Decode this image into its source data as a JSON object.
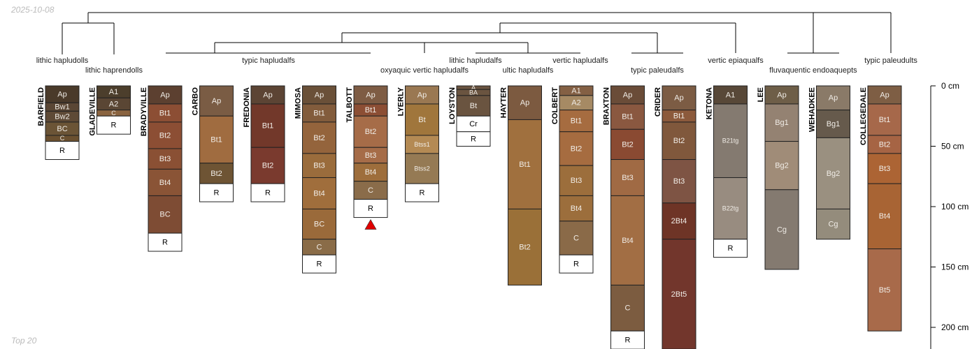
{
  "header": {
    "date": "2025-10-08"
  },
  "footer": {
    "caption": "Top 20"
  },
  "depth_axis": {
    "unit": "cm",
    "max_cm": 215,
    "ticks": [
      {
        "value": 0,
        "label": "0 cm"
      },
      {
        "value": 50,
        "label": "50 cm"
      },
      {
        "value": 100,
        "label": "100 cm"
      },
      {
        "value": 150,
        "label": "150 cm"
      },
      {
        "value": 200,
        "label": "200 cm"
      }
    ]
  },
  "taxa": [
    {
      "label": "lithic hapludolls",
      "row": 0
    },
    {
      "label": "lithic haprendolls",
      "row": 1
    },
    {
      "label": "typic hapludalfs",
      "row": 0
    },
    {
      "label": "oxyaquic vertic hapludalfs",
      "row": 1
    },
    {
      "label": "lithic hapludalfs",
      "row": 0
    },
    {
      "label": "ultic hapludalfs",
      "row": 1
    },
    {
      "label": "vertic hapludalfs",
      "row": 0
    },
    {
      "label": "typic paleudalfs",
      "row": 1
    },
    {
      "label": "vertic epiaqualfs",
      "row": 0
    },
    {
      "label": "fluvaquentic endoaquepts",
      "row": 1
    },
    {
      "label": "typic paleudults",
      "row": 0
    }
  ],
  "profiles": [
    {
      "name": "BARFIELD",
      "horizons": [
        {
          "name": "Ap",
          "top": 0,
          "bottom": 14,
          "color": "#4a3a2a"
        },
        {
          "name": "Bw1",
          "top": 14,
          "bottom": 21,
          "color": "#5a4634"
        },
        {
          "name": "Bw2",
          "top": 21,
          "bottom": 30,
          "color": "#5e4a36"
        },
        {
          "name": "BC",
          "top": 30,
          "bottom": 41,
          "color": "#6b5436"
        },
        {
          "name": "C",
          "top": 41,
          "bottom": 46,
          "color": "#6a5030"
        },
        {
          "name": "R",
          "top": 46,
          "bottom": 61,
          "color": "#ffffff"
        }
      ]
    },
    {
      "name": "GLADEVILLE",
      "horizons": [
        {
          "name": "A1",
          "top": 0,
          "bottom": 10,
          "color": "#4c3e2c"
        },
        {
          "name": "A2",
          "top": 10,
          "bottom": 20,
          "color": "#5a4634"
        },
        {
          "name": "C",
          "top": 20,
          "bottom": 25,
          "color": "#8a6440"
        },
        {
          "name": "R",
          "top": 25,
          "bottom": 40,
          "color": "#ffffff"
        }
      ]
    },
    {
      "name": "BRADYVILLE",
      "horizons": [
        {
          "name": "Ap",
          "top": 0,
          "bottom": 15,
          "color": "#5c4030"
        },
        {
          "name": "Bt1",
          "top": 15,
          "bottom": 30,
          "color": "#8c4e34"
        },
        {
          "name": "Bt2",
          "top": 30,
          "bottom": 52,
          "color": "#8c4e34"
        },
        {
          "name": "Bt3",
          "top": 52,
          "bottom": 69,
          "color": "#8a5034"
        },
        {
          "name": "Bt4",
          "top": 69,
          "bottom": 91,
          "color": "#8a5436"
        },
        {
          "name": "BC",
          "top": 91,
          "bottom": 122,
          "color": "#7e4c34"
        },
        {
          "name": "R",
          "top": 122,
          "bottom": 137,
          "color": "#ffffff"
        }
      ]
    },
    {
      "name": "CARBO",
      "horizons": [
        {
          "name": "Ap",
          "top": 0,
          "bottom": 25,
          "color": "#7a5c44"
        },
        {
          "name": "Bt1",
          "top": 25,
          "bottom": 64,
          "color": "#a06c40"
        },
        {
          "name": "Bt2",
          "top": 64,
          "bottom": 81,
          "color": "#6e5434"
        },
        {
          "name": "R",
          "top": 81,
          "bottom": 96,
          "color": "#ffffff"
        }
      ]
    },
    {
      "name": "FREDONIA",
      "horizons": [
        {
          "name": "Ap",
          "top": 0,
          "bottom": 15,
          "color": "#5c4434"
        },
        {
          "name": "Bt1",
          "top": 15,
          "bottom": 51,
          "color": "#72382a"
        },
        {
          "name": "Bt2",
          "top": 51,
          "bottom": 81,
          "color": "#7a3a2e"
        },
        {
          "name": "R",
          "top": 81,
          "bottom": 96,
          "color": "#ffffff"
        }
      ]
    },
    {
      "name": "MIMOSA",
      "horizons": [
        {
          "name": "Ap",
          "top": 0,
          "bottom": 15,
          "color": "#6a5038"
        },
        {
          "name": "Bt1",
          "top": 15,
          "bottom": 30,
          "color": "#825c3c"
        },
        {
          "name": "Bt2",
          "top": 30,
          "bottom": 56,
          "color": "#94643c"
        },
        {
          "name": "Bt3",
          "top": 56,
          "bottom": 76,
          "color": "#9a6c3c"
        },
        {
          "name": "Bt4",
          "top": 76,
          "bottom": 102,
          "color": "#a06e3c"
        },
        {
          "name": "BC",
          "top": 102,
          "bottom": 127,
          "color": "#9a6a3a"
        },
        {
          "name": "C",
          "top": 127,
          "bottom": 140,
          "color": "#8a6c48"
        },
        {
          "name": "R",
          "top": 140,
          "bottom": 155,
          "color": "#ffffff"
        }
      ]
    },
    {
      "name": "TALBOTT",
      "horizons": [
        {
          "name": "Ap",
          "top": 0,
          "bottom": 15,
          "color": "#7e5c44"
        },
        {
          "name": "Bt1",
          "top": 15,
          "bottom": 25,
          "color": "#8c4e34"
        },
        {
          "name": "Bt2",
          "top": 25,
          "bottom": 51,
          "color": "#a66c48"
        },
        {
          "name": "Bt3",
          "top": 51,
          "bottom": 64,
          "color": "#a66c48"
        },
        {
          "name": "Bt4",
          "top": 64,
          "bottom": 79,
          "color": "#9e6e3c"
        },
        {
          "name": "C",
          "top": 79,
          "bottom": 94,
          "color": "#8a6c4a"
        },
        {
          "name": "R",
          "top": 94,
          "bottom": 109,
          "color": "#ffffff"
        }
      ]
    },
    {
      "name": "LYERLY",
      "horizons": [
        {
          "name": "Ap",
          "top": 0,
          "bottom": 15,
          "color": "#9a7852"
        },
        {
          "name": "Bt",
          "top": 15,
          "bottom": 41,
          "color": "#a0763c"
        },
        {
          "name": "Btss1",
          "top": 41,
          "bottom": 56,
          "color": "#b48a54"
        },
        {
          "name": "Btss2",
          "top": 56,
          "bottom": 81,
          "color": "#957a54"
        },
        {
          "name": "R",
          "top": 81,
          "bottom": 96,
          "color": "#ffffff"
        }
      ]
    },
    {
      "name": "LOYSTON",
      "horizons": [
        {
          "name": "A",
          "top": 0,
          "bottom": 3,
          "color": "#6a5440"
        },
        {
          "name": "BA",
          "top": 3,
          "bottom": 8,
          "color": "#6a5440"
        },
        {
          "name": "Bt",
          "top": 8,
          "bottom": 25,
          "color": "#6a5440"
        },
        {
          "name": "Cr",
          "top": 25,
          "bottom": 38,
          "color": "#ffffff"
        },
        {
          "name": "R",
          "top": 38,
          "bottom": 50,
          "color": "#ffffff"
        }
      ]
    },
    {
      "name": "HAYTER",
      "horizons": [
        {
          "name": "Ap",
          "top": 0,
          "bottom": 28,
          "color": "#7c5a40"
        },
        {
          "name": "Bt1",
          "top": 28,
          "bottom": 102,
          "color": "#a0703e"
        },
        {
          "name": "Bt2",
          "top": 102,
          "bottom": 165,
          "color": "#9a7038"
        }
      ]
    },
    {
      "name": "COLBERT",
      "horizons": [
        {
          "name": "A1",
          "top": 0,
          "bottom": 8,
          "color": "#846044"
        },
        {
          "name": "A2",
          "top": 8,
          "bottom": 20,
          "color": "#a68a64"
        },
        {
          "name": "Bt1",
          "top": 20,
          "bottom": 38,
          "color": "#a66c40"
        },
        {
          "name": "Bt2",
          "top": 38,
          "bottom": 66,
          "color": "#a66c40"
        },
        {
          "name": "Bt3",
          "top": 66,
          "bottom": 91,
          "color": "#9c6e3c"
        },
        {
          "name": "Bt4",
          "top": 91,
          "bottom": 112,
          "color": "#9c6e3c"
        },
        {
          "name": "C",
          "top": 112,
          "bottom": 140,
          "color": "#8a6a48"
        },
        {
          "name": "R",
          "top": 140,
          "bottom": 155,
          "color": "#ffffff"
        }
      ]
    },
    {
      "name": "BRAXTON",
      "horizons": [
        {
          "name": "Ap",
          "top": 0,
          "bottom": 15,
          "color": "#6a4c38"
        },
        {
          "name": "Bt1",
          "top": 15,
          "bottom": 36,
          "color": "#8a5840"
        },
        {
          "name": "Bt2",
          "top": 36,
          "bottom": 61,
          "color": "#8a4a32"
        },
        {
          "name": "Bt3",
          "top": 61,
          "bottom": 91,
          "color": "#a06a44"
        },
        {
          "name": "Bt4",
          "top": 91,
          "bottom": 165,
          "color": "#a26e44"
        },
        {
          "name": "C",
          "top": 165,
          "bottom": 203,
          "color": "#7c5c40"
        },
        {
          "name": "R",
          "top": 203,
          "bottom": 218,
          "color": "#ffffff"
        }
      ]
    },
    {
      "name": "CRIDER",
      "horizons": [
        {
          "name": "Ap",
          "top": 0,
          "bottom": 20,
          "color": "#7c5c44"
        },
        {
          "name": "Bt1",
          "top": 20,
          "bottom": 30,
          "color": "#8c5a3c"
        },
        {
          "name": "Bt2",
          "top": 30,
          "bottom": 61,
          "color": "#80583c"
        },
        {
          "name": "Bt3",
          "top": 61,
          "bottom": 97,
          "color": "#7e5444"
        },
        {
          "name": "2Bt4",
          "top": 97,
          "bottom": 127,
          "color": "#6e3426"
        },
        {
          "name": "2Bt5",
          "top": 127,
          "bottom": 218,
          "color": "#72362c"
        }
      ]
    },
    {
      "name": "KETONA",
      "horizons": [
        {
          "name": "A1",
          "top": 0,
          "bottom": 15,
          "color": "#584838"
        },
        {
          "name": "B21tg",
          "top": 15,
          "bottom": 76,
          "color": "#847a70"
        },
        {
          "name": "B22tg",
          "top": 76,
          "bottom": 127,
          "color": "#988c80"
        },
        {
          "name": "R",
          "top": 127,
          "bottom": 142,
          "color": "#ffffff"
        }
      ]
    },
    {
      "name": "LEE",
      "horizons": [
        {
          "name": "Ap",
          "top": 0,
          "bottom": 15,
          "color": "#6e5e48"
        },
        {
          "name": "Bg1",
          "top": 15,
          "bottom": 46,
          "color": "#948272"
        },
        {
          "name": "Bg2",
          "top": 46,
          "bottom": 86,
          "color": "#a08c78"
        },
        {
          "name": "Cg",
          "top": 86,
          "bottom": 152,
          "color": "#847a70"
        }
      ]
    },
    {
      "name": "WEHADKEE",
      "horizons": [
        {
          "name": "Ap",
          "top": 0,
          "bottom": 20,
          "color": "#8a7a68"
        },
        {
          "name": "Bg1",
          "top": 20,
          "bottom": 43,
          "color": "#665a4c"
        },
        {
          "name": "Bg2",
          "top": 43,
          "bottom": 102,
          "color": "#9a9080"
        },
        {
          "name": "Cg",
          "top": 102,
          "bottom": 127,
          "color": "#948c7c"
        }
      ]
    },
    {
      "name": "COLLEGEDALE",
      "horizons": [
        {
          "name": "Ap",
          "top": 0,
          "bottom": 15,
          "color": "#7e5e44"
        },
        {
          "name": "Bt1",
          "top": 15,
          "bottom": 41,
          "color": "#a6684a"
        },
        {
          "name": "Bt2",
          "top": 41,
          "bottom": 56,
          "color": "#a66444"
        },
        {
          "name": "Bt3",
          "top": 56,
          "bottom": 81,
          "color": "#ac6434"
        },
        {
          "name": "Bt4",
          "top": 81,
          "bottom": 135,
          "color": "#a86434"
        },
        {
          "name": "Bt5",
          "top": 135,
          "bottom": 203,
          "color": "#a86a4a"
        }
      ]
    }
  ],
  "marker": {
    "profile": "TALBOTT",
    "color": "#e00000"
  }
}
